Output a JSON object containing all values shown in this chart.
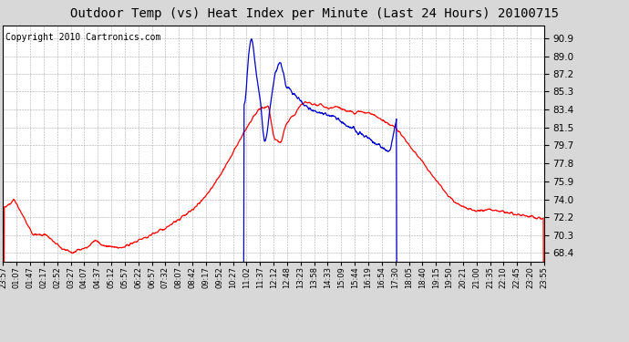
{
  "title": "Outdoor Temp (vs) Heat Index per Minute (Last 24 Hours) 20100715",
  "copyright": "Copyright 2010 Cartronics.com",
  "yticks": [
    68.4,
    70.3,
    72.2,
    74.0,
    75.9,
    77.8,
    79.7,
    81.5,
    83.4,
    85.3,
    87.2,
    89.0,
    90.9
  ],
  "ylim": [
    67.5,
    92.2
  ],
  "xtick_labels": [
    "23:57",
    "01:07",
    "01:47",
    "02:17",
    "02:52",
    "03:27",
    "04:07",
    "04:37",
    "05:12",
    "05:57",
    "06:22",
    "06:57",
    "07:32",
    "08:07",
    "08:42",
    "09:17",
    "09:52",
    "10:27",
    "11:02",
    "11:37",
    "12:12",
    "12:48",
    "13:23",
    "13:58",
    "14:33",
    "15:09",
    "15:44",
    "16:19",
    "16:54",
    "17:30",
    "18:05",
    "18:40",
    "19:15",
    "19:50",
    "20:21",
    "21:00",
    "21:35",
    "22:10",
    "22:45",
    "23:20",
    "23:55"
  ],
  "bg_color": "#d8d8d8",
  "plot_bg_color": "#ffffff",
  "red_color": "#ff0000",
  "blue_color": "#0000cc",
  "title_fontsize": 10,
  "copyright_fontsize": 7
}
